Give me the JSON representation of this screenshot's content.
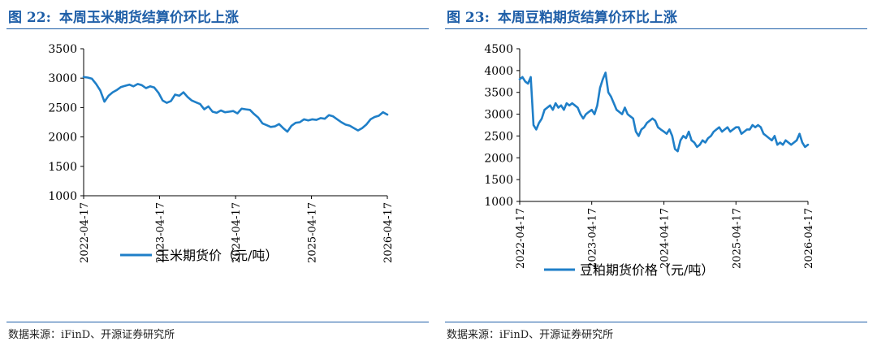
{
  "panels": [
    {
      "title_num": "图 22:",
      "title_text": "本周玉米期货结算价环比上涨",
      "source": "数据来源：iFinD、开源证券研究所",
      "chart_data": {
        "type": "line",
        "series": [
          {
            "name": "玉米期货价（元/吨）",
            "color": "#1f7fc8",
            "x": [
              "2022-04-17",
              "2022-05-07",
              "2022-05-27",
              "2022-06-16",
              "2022-07-06",
              "2022-07-26",
              "2022-08-15",
              "2022-09-04",
              "2022-09-24",
              "2022-10-14",
              "2022-11-03",
              "2022-11-23",
              "2022-12-13",
              "2023-01-02",
              "2023-01-22",
              "2023-02-11",
              "2023-03-03",
              "2023-03-23",
              "2023-04-12",
              "2023-05-02",
              "2023-05-22",
              "2023-06-11",
              "2023-07-01",
              "2023-07-21",
              "2023-08-10",
              "2023-08-30",
              "2023-09-19",
              "2023-10-09",
              "2023-10-29",
              "2023-11-18",
              "2023-12-08",
              "2023-12-28",
              "2024-01-17",
              "2024-02-06",
              "2024-02-26",
              "2024-03-17",
              "2024-04-06",
              "2024-04-26",
              "2024-05-16",
              "2024-06-05",
              "2024-06-25",
              "2024-07-15",
              "2024-08-04",
              "2024-08-24",
              "2024-09-13",
              "2024-10-03",
              "2024-10-23",
              "2024-11-12",
              "2024-12-02",
              "2024-12-22",
              "2025-01-11",
              "2025-01-31",
              "2025-02-20",
              "2025-03-12",
              "2025-04-01",
              "2025-04-21",
              "2025-05-11",
              "2025-05-31",
              "2025-06-20",
              "2025-07-10",
              "2025-07-30",
              "2025-08-19",
              "2025-09-08",
              "2025-09-28",
              "2025-10-18",
              "2025-11-07",
              "2025-11-27",
              "2025-12-17",
              "2026-01-06",
              "2026-01-26",
              "2026-02-15",
              "2026-03-07",
              "2026-03-27",
              "2026-04-17"
            ],
            "values": [
              3020,
              3010,
              2990,
              2900,
              2790,
              2600,
              2700,
              2760,
              2800,
              2850,
              2870,
              2890,
              2860,
              2900,
              2880,
              2830,
              2860,
              2840,
              2750,
              2620,
              2580,
              2610,
              2720,
              2700,
              2760,
              2680,
              2620,
              2590,
              2560,
              2470,
              2520,
              2430,
              2410,
              2450,
              2420,
              2430,
              2440,
              2400,
              2480,
              2470,
              2460,
              2390,
              2330,
              2230,
              2200,
              2170,
              2180,
              2220,
              2150,
              2090,
              2190,
              2240,
              2250,
              2300,
              2280,
              2300,
              2290,
              2320,
              2310,
              2370,
              2350,
              2300,
              2250,
              2210,
              2190,
              2150,
              2110,
              2150,
              2210,
              2300,
              2340,
              2360,
              2420,
              2380
            ]
          }
        ],
        "ylim": [
          1000,
          3500
        ],
        "yticks": [
          1000,
          1500,
          2000,
          2500,
          3000,
          3500
        ],
        "xticks": [
          "2022-04-17",
          "2023-04-17",
          "2024-04-17",
          "2025-04-17",
          "2026-04-17"
        ],
        "grid": false,
        "legend": "bottom"
      }
    },
    {
      "title_num": "图 23:",
      "title_text": "本周豆粕期货结算价环比上涨",
      "source": "数据来源：iFinD、开源证券研究所",
      "chart_data": {
        "type": "line",
        "series": [
          {
            "name": "豆粕期货价格（元/吨）",
            "color": "#1f7fc8",
            "x": [
              "2022-04-17",
              "2022-05-01",
              "2022-05-15",
              "2022-05-29",
              "2022-06-12",
              "2022-06-26",
              "2022-07-10",
              "2022-07-24",
              "2022-08-07",
              "2022-08-21",
              "2022-09-04",
              "2022-09-18",
              "2022-10-02",
              "2022-10-16",
              "2022-10-30",
              "2022-11-13",
              "2022-11-27",
              "2022-12-11",
              "2022-12-25",
              "2023-01-08",
              "2023-01-22",
              "2023-02-05",
              "2023-02-19",
              "2023-03-05",
              "2023-03-19",
              "2023-04-02",
              "2023-04-17",
              "2023-05-01",
              "2023-05-15",
              "2023-05-29",
              "2023-06-12",
              "2023-06-26",
              "2023-07-10",
              "2023-07-24",
              "2023-08-07",
              "2023-08-21",
              "2023-09-04",
              "2023-09-18",
              "2023-10-02",
              "2023-10-16",
              "2023-10-30",
              "2023-11-13",
              "2023-11-27",
              "2023-12-11",
              "2023-12-25",
              "2024-01-08",
              "2024-01-22",
              "2024-02-05",
              "2024-02-19",
              "2024-03-04",
              "2024-03-18",
              "2024-04-01",
              "2024-04-17",
              "2024-05-01",
              "2024-05-15",
              "2024-05-29",
              "2024-06-12",
              "2024-06-26",
              "2024-07-10",
              "2024-07-24",
              "2024-08-07",
              "2024-08-21",
              "2024-09-04",
              "2024-09-18",
              "2024-10-02",
              "2024-10-16",
              "2024-10-30",
              "2024-11-13",
              "2024-11-27",
              "2024-12-11",
              "2024-12-25",
              "2025-01-08",
              "2025-01-22",
              "2025-02-05",
              "2025-02-19",
              "2025-03-05",
              "2025-03-19",
              "2025-04-02",
              "2025-04-17",
              "2025-05-01",
              "2025-05-15",
              "2025-05-29",
              "2025-06-12",
              "2025-06-26",
              "2025-07-10",
              "2025-07-24",
              "2025-08-07",
              "2025-08-21",
              "2025-09-04",
              "2025-09-18",
              "2025-10-02",
              "2025-10-16",
              "2025-10-30",
              "2025-11-13",
              "2025-11-27",
              "2025-12-11",
              "2025-12-25",
              "2026-01-08",
              "2026-01-22",
              "2026-02-05",
              "2026-02-19",
              "2026-03-05",
              "2026-03-19",
              "2026-04-02",
              "2026-04-17"
            ],
            "values": [
              3800,
              3850,
              3750,
              3700,
              3850,
              2750,
              2650,
              2800,
              2900,
              3100,
              3150,
              3200,
              3100,
              3250,
              3150,
              3200,
              3100,
              3250,
              3200,
              3250,
              3200,
              3150,
              3000,
              2900,
              3000,
              3050,
              3100,
              3000,
              3200,
              3600,
              3800,
              3950,
              3500,
              3400,
              3250,
              3100,
              3050,
              3000,
              3150,
              3000,
              2950,
              2900,
              2600,
              2500,
              2650,
              2700,
              2800,
              2850,
              2900,
              2850,
              2700,
              2650,
              2600,
              2550,
              2650,
              2500,
              2200,
              2150,
              2400,
              2500,
              2450,
              2600,
              2400,
              2350,
              2250,
              2300,
              2400,
              2350,
              2450,
              2500,
              2600,
              2650,
              2700,
              2600,
              2650,
              2700,
              2600,
              2650,
              2700,
              2700,
              2550,
              2600,
              2650,
              2650,
              2750,
              2700,
              2750,
              2700,
              2550,
              2500,
              2450,
              2400,
              2500,
              2300,
              2350,
              2300,
              2400,
              2350,
              2300,
              2350,
              2400,
              2550,
              2350,
              2250,
              2300
            ]
          }
        ],
        "ylim": [
          1000,
          4500
        ],
        "yticks": [
          1000,
          1500,
          2000,
          2500,
          3000,
          3500,
          4000,
          4500
        ],
        "xticks": [
          "2022-04-17",
          "2023-04-17",
          "2024-04-17",
          "2025-04-17",
          "2026-04-17"
        ],
        "grid": false,
        "legend": "bottom"
      }
    }
  ]
}
